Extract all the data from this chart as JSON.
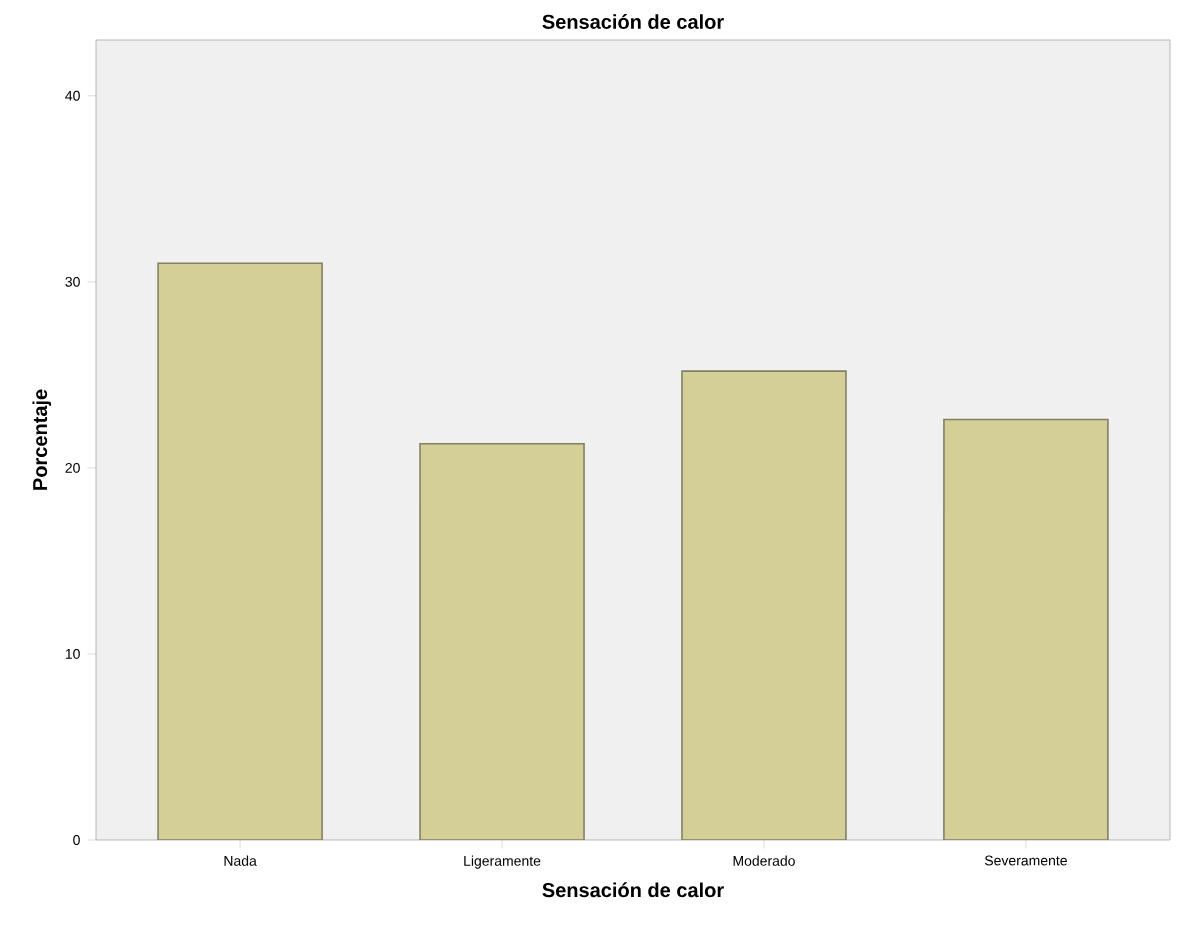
{
  "chart_data": {
    "type": "bar",
    "title": "Sensación de calor",
    "xlabel": "Sensación de calor",
    "ylabel": "Porcentaje",
    "categories": [
      "Nada",
      "Ligeramente",
      "Moderado",
      "Severamente"
    ],
    "values": [
      31.0,
      21.3,
      25.2,
      22.6
    ],
    "color": "#d3cf96",
    "ylim": [
      0,
      43
    ],
    "yticks": [
      0,
      10,
      20,
      30,
      40
    ]
  }
}
